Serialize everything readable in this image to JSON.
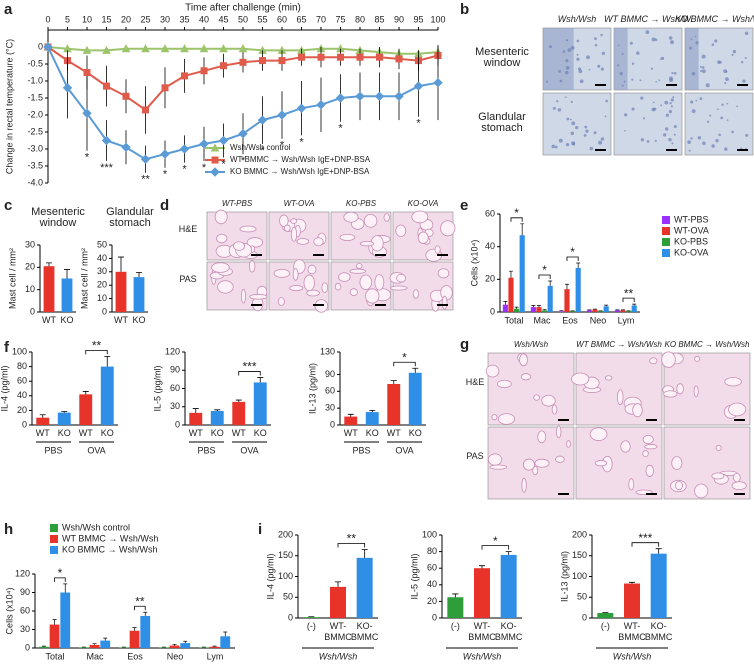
{
  "panel_letters": [
    "a",
    "b",
    "c",
    "d",
    "e",
    "f",
    "g",
    "h",
    "i"
  ],
  "micrographs": [
    {
      "columns": [
        "Wsh/Wsh",
        "WT BMMC → Wsh/Wsh",
        "KO BMMC → Wsh/Wsh"
      ],
      "rows": [
        "Mesenteric window",
        "Glandular stomach"
      ]
    },
    {
      "columns": [
        "WT-PBS",
        "WT-OVA",
        "KO-PBS",
        "KO-OVA"
      ],
      "rows": [
        "H&E",
        "PAS"
      ]
    },
    {
      "columns": [
        "Wsh/Wsh",
        "WT BMMC → Wsh/Wsh",
        "KO BMMC → Wsh/Wsh"
      ],
      "rows": [
        "H&E",
        "PAS"
      ]
    }
  ],
  "chart_data": [
    {
      "type": "line",
      "title": "Time after challenge (min)",
      "ylabel": "Change in rectal temperature (°C)",
      "x": [
        0,
        5,
        10,
        15,
        20,
        25,
        30,
        35,
        40,
        45,
        50,
        55,
        60,
        65,
        70,
        75,
        80,
        85,
        90,
        95,
        100
      ],
      "xlim": [
        0,
        100
      ],
      "xticks": [
        0,
        5,
        10,
        15,
        20,
        25,
        30,
        35,
        40,
        45,
        50,
        55,
        60,
        65,
        70,
        75,
        80,
        85,
        90,
        95,
        100
      ],
      "ylim": [
        -4,
        0.5
      ],
      "yticks": [
        0,
        -0.5,
        {
          "value": -1,
          "label": "-1.0"
        },
        -1.5,
        {
          "value": -2,
          "label": "-2.0"
        },
        -2.5,
        {
          "value": -3,
          "label": "-3.0"
        },
        -3.5,
        {
          "value": -4,
          "label": "-4.0"
        }
      ],
      "series": [
        {
          "name": "Wsh/Wsh control",
          "color": "#9cc46a",
          "marker": "triangle",
          "values": [
            0,
            -0.05,
            -0.1,
            -0.1,
            -0.05,
            -0.05,
            -0.05,
            -0.05,
            -0.05,
            -0.05,
            -0.05,
            -0.1,
            -0.1,
            -0.1,
            -0.05,
            -0.05,
            -0.1,
            -0.15,
            -0.2,
            -0.2,
            -0.15
          ]
        },
        {
          "name": "WT BMMC → Wsh/Wsh IgE+DNP-BSA",
          "color": "#e05b4b",
          "marker": "square",
          "values": [
            0,
            -0.4,
            -0.75,
            -1.15,
            -1.45,
            -1.85,
            -1.2,
            -0.85,
            -0.7,
            -0.55,
            -0.45,
            -0.4,
            -0.4,
            -0.3,
            -0.3,
            -0.3,
            -0.3,
            -0.3,
            -0.35,
            -0.4,
            -0.25
          ],
          "errors": [
            0,
            0.3,
            0.5,
            0.6,
            0.5,
            0.7,
            0.6,
            0.5,
            0.4,
            0.35,
            0.3,
            0.3,
            0.3,
            0.25,
            0.3,
            0.25,
            0.25,
            0.3,
            0.3,
            0.3,
            0.3
          ]
        },
        {
          "name": "KO BMMC → Wsh/Wsh IgE+DNP-BSA",
          "color": "#5b9bd5",
          "marker": "diamond",
          "values": [
            0,
            -1.2,
            -1.95,
            -2.75,
            -2.95,
            -3.3,
            -3.15,
            -3.0,
            -2.85,
            -2.75,
            -2.55,
            -2.15,
            -2.0,
            -1.8,
            -1.7,
            -1.5,
            -1.45,
            -1.45,
            -1.45,
            -1.15,
            -1.05
          ],
          "errors": [
            0,
            0.9,
            1.1,
            0.6,
            0.5,
            0.4,
            0.4,
            0.4,
            0.5,
            0.5,
            0.6,
            0.7,
            0.7,
            0.8,
            0.8,
            0.7,
            0.7,
            0.7,
            0.7,
            0.9,
            1.1
          ],
          "significance": [
            null,
            null,
            "*",
            "***",
            null,
            "**",
            "*",
            "*",
            "*",
            "*",
            "*",
            "*",
            "*",
            "*",
            null,
            "*",
            null,
            null,
            null,
            "*",
            null
          ]
        }
      ]
    },
    {
      "type": "bar",
      "title": "Mesenteric window",
      "ylabel": "Mast cell / mm²",
      "categories": [
        "WT",
        "KO"
      ],
      "values": [
        20.5,
        15
      ],
      "errors": [
        1.5,
        4
      ],
      "colors": [
        "#e8332a",
        "#2f8fe6"
      ],
      "ylim": [
        0,
        30
      ],
      "yticks": [
        0,
        10,
        20,
        30
      ]
    },
    {
      "type": "bar",
      "title": "Glandular stomach",
      "ylabel": "Mast cell / mm²",
      "categories": [
        "WT",
        "KO"
      ],
      "values": [
        30,
        26
      ],
      "errors": [
        11,
        3.5
      ],
      "colors": [
        "#e8332a",
        "#2f8fe6"
      ],
      "ylim": [
        0,
        50
      ],
      "yticks": [
        0,
        10,
        20,
        30,
        40,
        50
      ]
    },
    {
      "type": "grouped_bar",
      "ylabel": "Cells (x10⁴)",
      "categories": [
        "Total",
        "Mac",
        "Eos",
        "Neo",
        "Lym"
      ],
      "series": [
        {
          "name": "WT-PBS",
          "color": "#9b30ff",
          "values": [
            4.5,
            3,
            0.5,
            1,
            1
          ],
          "errors": [
            2,
            1,
            0.3,
            0.3,
            0.3
          ]
        },
        {
          "name": "WT-OVA",
          "color": "#e8332a",
          "values": [
            21,
            3,
            14,
            1.5,
            1
          ],
          "errors": [
            4,
            1,
            3,
            0.3,
            0.3
          ]
        },
        {
          "name": "KO-PBS",
          "color": "#2e9e3a",
          "values": [
            2,
            1,
            0.5,
            0.5,
            0.5
          ],
          "errors": [
            1,
            0.5,
            0.2,
            0.2,
            0.2
          ]
        },
        {
          "name": "KO-OVA",
          "color": "#2f8fe6",
          "values": [
            47,
            16,
            27,
            3.5,
            4
          ],
          "errors": [
            7,
            3,
            3,
            0.7,
            0.8
          ]
        }
      ],
      "ylim": [
        0,
        60
      ],
      "yticks": [
        0,
        20,
        40,
        60
      ],
      "significance": [
        {
          "label": "*",
          "category": 0,
          "from": 1,
          "to": 3
        },
        {
          "label": "*",
          "category": 1,
          "from": 1,
          "to": 3
        },
        {
          "label": "*",
          "category": 2,
          "from": 1,
          "to": 3
        },
        {
          "label": "**",
          "category": 4,
          "from": 1,
          "to": 3
        }
      ]
    },
    {
      "type": "bar",
      "ylabel": "IL-4 (pg/ml)",
      "categories": [
        "WT",
        "KO",
        "WT",
        "KO"
      ],
      "groups": [
        "PBS",
        "OVA"
      ],
      "values": [
        10,
        17,
        42,
        80
      ],
      "errors": [
        4,
        1.5,
        4,
        14
      ],
      "colors": [
        "#e8332a",
        "#2f8fe6",
        "#e8332a",
        "#2f8fe6"
      ],
      "ylim": [
        0,
        100
      ],
      "yticks": [
        0,
        20,
        40,
        60,
        80,
        100
      ],
      "significance": [
        {
          "label": "**",
          "from": 2,
          "to": 3
        }
      ]
    },
    {
      "type": "bar",
      "ylabel": "IL-5 (pg/ml)",
      "categories": [
        "WT",
        "KO",
        "WT",
        "KO"
      ],
      "groups": [
        "PBS",
        "OVA"
      ],
      "values": [
        20,
        23,
        38,
        70
      ],
      "errors": [
        7,
        2,
        3,
        8
      ],
      "colors": [
        "#e8332a",
        "#2f8fe6",
        "#e8332a",
        "#2f8fe6"
      ],
      "ylim": [
        0,
        120
      ],
      "yticks": [
        0,
        30,
        60,
        90,
        120
      ],
      "significance": [
        {
          "label": "***",
          "from": 2,
          "to": 3
        }
      ]
    },
    {
      "type": "bar",
      "ylabel": "IL-13 (pg/ml)",
      "categories": [
        "WT",
        "KO",
        "WT",
        "KO"
      ],
      "groups": [
        "PBS",
        "OVA"
      ],
      "values": [
        15,
        23,
        73,
        93
      ],
      "errors": [
        4,
        3,
        6,
        8
      ],
      "colors": [
        "#e8332a",
        "#2f8fe6",
        "#e8332a",
        "#2f8fe6"
      ],
      "ylim": [
        0,
        130
      ],
      "yticks": [
        0,
        30,
        60,
        90,
        130
      ],
      "significance": [
        {
          "label": "*",
          "from": 2,
          "to": 3
        }
      ]
    },
    {
      "type": "grouped_bar",
      "ylabel": "Cells (x10⁴)",
      "categories": [
        "Total",
        "Mac",
        "Eos",
        "Neo",
        "Lym"
      ],
      "series": [
        {
          "name": "Wsh/Wsh control",
          "color": "#2e9e3a",
          "values": [
            2,
            1,
            1,
            1,
            1
          ],
          "errors": [
            1,
            0.5,
            0.5,
            0.5,
            0.5
          ]
        },
        {
          "name": "WT BMMC → Wsh/Wsh",
          "color": "#e8332a",
          "values": [
            38,
            5,
            28,
            4,
            2
          ],
          "errors": [
            8,
            2,
            5,
            2,
            1
          ]
        },
        {
          "name": "KO BMMC → Wsh/Wsh",
          "color": "#2f8fe6",
          "values": [
            90,
            12,
            52,
            8,
            19
          ],
          "errors": [
            14,
            4,
            6,
            3,
            7
          ]
        }
      ],
      "ylim": [
        0,
        120
      ],
      "yticks": [
        0,
        30,
        60,
        90,
        120
      ],
      "significance": [
        {
          "label": "*",
          "category": 0,
          "from": 1,
          "to": 2
        },
        {
          "label": "**",
          "category": 2,
          "from": 1,
          "to": 2
        }
      ]
    },
    {
      "type": "bar",
      "ylabel": "IL-4 (pg/ml)",
      "categories": [
        "(-)",
        "WT-BMMC",
        "KO-BMMC"
      ],
      "groups": [
        "Wsh/Wsh"
      ],
      "values": [
        2,
        75,
        145
      ],
      "errors": [
        1,
        12,
        20
      ],
      "colors": [
        "#2e9e3a",
        "#e8332a",
        "#2f8fe6"
      ],
      "ylim": [
        0,
        200
      ],
      "yticks": [
        0,
        50,
        100,
        150,
        200
      ],
      "significance": [
        {
          "label": "**",
          "from": 1,
          "to": 2
        }
      ]
    },
    {
      "type": "bar",
      "ylabel": "IL-5 (pg/ml)",
      "categories": [
        "(-)",
        "WT-BMMC",
        "KO-BMMC"
      ],
      "groups": [
        "Wsh/Wsh"
      ],
      "values": [
        25,
        60,
        76
      ],
      "errors": [
        4,
        3,
        4
      ],
      "colors": [
        "#2e9e3a",
        "#e8332a",
        "#2f8fe6"
      ],
      "ylim": [
        0,
        100
      ],
      "yticks": [
        0,
        20,
        40,
        60,
        80,
        100
      ],
      "significance": [
        {
          "label": "*",
          "from": 1,
          "to": 2
        }
      ]
    },
    {
      "type": "bar",
      "ylabel": "IL-13 (pg/ml)",
      "categories": [
        "(-)",
        "WT-BMMC",
        "KO-BMMC"
      ],
      "groups": [
        "Wsh/Wsh"
      ],
      "values": [
        12,
        83,
        155
      ],
      "errors": [
        1,
        3,
        12
      ],
      "colors": [
        "#2e9e3a",
        "#e8332a",
        "#2f8fe6"
      ],
      "ylim": [
        0,
        200
      ],
      "yticks": [
        0,
        50,
        100,
        150,
        200
      ],
      "significance": [
        {
          "label": "***",
          "from": 1,
          "to": 2
        }
      ]
    }
  ]
}
